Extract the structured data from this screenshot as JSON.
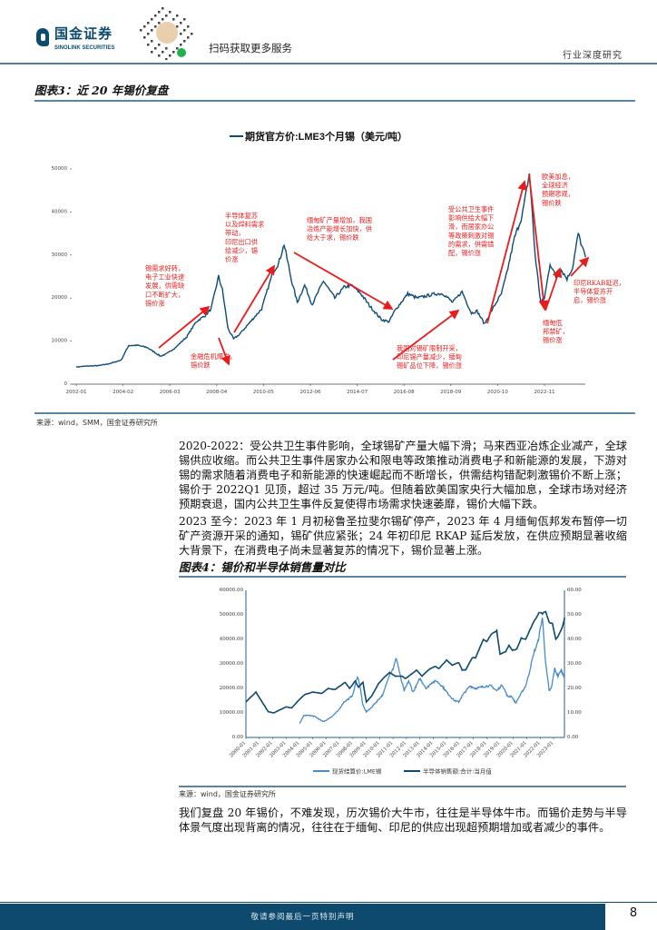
{
  "header": {
    "logo_cn": "国金证券",
    "logo_en": "SINOLINK SECURITIES",
    "qr_caption": "扫码获取更多服务",
    "doc_type": "行业深度研究",
    "brand_color": "#0c4a6e"
  },
  "figure3": {
    "title": "图表3：近 20 年锡价复盘",
    "source": "来源：wind，SMM，国金证券研究所"
  },
  "figure4": {
    "title": "图表4：锡价和半导体销售量对比",
    "source": "来源：wind，国金证券研究所"
  },
  "body": {
    "p1": "2020-2022：受公共卫生事件影响，全球锡矿产量大幅下滑；马来西亚冶炼企业减产，全球锡供应收缩。而公共卫生事件居家办公和限电等政策推动消费电子和新能源的发展，下游对锡的需求随着消费电子和新能源的快速崛起而不断增长，供需结构错配刺激锡价不断上涨；锡价于 2022Q1 见顶，超过 35 万元/吨。但随着欧美国家央行大幅加息，全球市场对经济预期衰退，国内公共卫生事件反复使得市场需求快速萎靡，锡价大幅下跌。",
    "p2": "2023 至今：2023 年 1 月初秘鲁圣拉斐尔锡矿停产，2023 年 4 月缅甸佤邦发布暂停一切矿产资源开采的通知，锡矿供应紧张；24 年初印尼 RKAP 延后发放，在供应预期显著收缩大背景下，在消费电子尚未显著复苏的情况下，锡价显著上涨。",
    "p3": "我们复盘 20 年锡价，不难发现，历次锡价大牛市，往往是半导体牛市。而锡价走势与半导体景气度出现背离的情况，往往在于缅甸、印尼的供应出现超预期增加或者减少的事件。"
  },
  "footer": {
    "disclaimer": "敬请参阅最后一页特别声明",
    "page_number": "8"
  },
  "chart_data": [
    {
      "type": "line",
      "title": "",
      "legend": [
        "期货官方价:LME3个月锡（美元/吨）"
      ],
      "legend_placement": "top",
      "x_ticks": [
        "2002-01",
        "2004-02",
        "2006-03",
        "2008-04",
        "2010-05",
        "2012-06",
        "2014-07",
        "2016-08",
        "2018-09",
        "2020-10",
        "2022-11"
      ],
      "y_ticks": [
        "0",
        "10000",
        "20000",
        "30000",
        "40000",
        "50000"
      ],
      "ylim": [
        0,
        50000
      ],
      "grid": false,
      "line_color": "#0f4c75",
      "annotation_color": "#e81c1c",
      "series": [
        {
          "name": "期货官方价:LME3个月锡（美元/吨）",
          "points": [
            [
              "2002-01",
              4000
            ],
            [
              "2002-07",
              4200
            ],
            [
              "2003-01",
              4300
            ],
            [
              "2003-07",
              4800
            ],
            [
              "2004-01",
              5600
            ],
            [
              "2004-05",
              9000
            ],
            [
              "2004-10",
              9000
            ],
            [
              "2005-03",
              8500
            ],
            [
              "2005-10",
              6500
            ],
            [
              "2006-01",
              7000
            ],
            [
              "2006-06",
              8500
            ],
            [
              "2006-12",
              11000
            ],
            [
              "2007-05",
              14500
            ],
            [
              "2007-10",
              16000
            ],
            [
              "2008-01",
              17500
            ],
            [
              "2008-05",
              25000
            ],
            [
              "2008-07",
              22000
            ],
            [
              "2008-10",
              13000
            ],
            [
              "2009-01",
              10500
            ],
            [
              "2009-04",
              11500
            ],
            [
              "2009-10",
              14500
            ],
            [
              "2010-04",
              17500
            ],
            [
              "2010-10",
              26000
            ],
            [
              "2011-01",
              28000
            ],
            [
              "2011-04",
              32500
            ],
            [
              "2011-08",
              24000
            ],
            [
              "2011-11",
              19000
            ],
            [
              "2012-03",
              23000
            ],
            [
              "2012-07",
              18500
            ],
            [
              "2013-01",
              24000
            ],
            [
              "2013-07",
              20000
            ],
            [
              "2013-12",
              22500
            ],
            [
              "2014-04",
              23000
            ],
            [
              "2014-09",
              21000
            ],
            [
              "2015-02",
              18000
            ],
            [
              "2015-08",
              15000
            ],
            [
              "2015-12",
              14500
            ],
            [
              "2016-03",
              17000
            ],
            [
              "2016-10",
              21000
            ],
            [
              "2017-03",
              20000
            ],
            [
              "2017-08",
              20500
            ],
            [
              "2018-01",
              21000
            ],
            [
              "2018-05",
              21000
            ],
            [
              "2018-10",
              19000
            ],
            [
              "2019-03",
              21500
            ],
            [
              "2019-08",
              16500
            ],
            [
              "2019-11",
              17000
            ],
            [
              "2020-03",
              14000
            ],
            [
              "2020-08",
              18000
            ],
            [
              "2020-12",
              21000
            ],
            [
              "2021-03",
              26000
            ],
            [
              "2021-07",
              34000
            ],
            [
              "2021-11",
              39000
            ],
            [
              "2022-03",
              49000
            ],
            [
              "2022-06",
              30000
            ],
            [
              "2022-09",
              19000
            ],
            [
              "2022-11",
              20000
            ],
            [
              "2023-02",
              28000
            ],
            [
              "2023-05",
              25000
            ],
            [
              "2023-08",
              26500
            ],
            [
              "2023-11",
              24500
            ],
            [
              "2024-02",
              27000
            ],
            [
              "2024-05",
              35000
            ],
            [
              "2024-07",
              32000
            ],
            [
              "2024-09",
              29500
            ]
          ]
        }
      ],
      "annotations": [
        {
          "text": [
            "锡需求好转，",
            "电子工业快速",
            "发展，供需缺",
            "口不断扩大，",
            "锡价涨"
          ],
          "trend": "up"
        },
        {
          "text": [
            "金融危机爆发，",
            "锡价跌"
          ],
          "trend": "down"
        },
        {
          "text": [
            "半导体复苏",
            "以及焊料需求",
            "带动，",
            "印尼出口供",
            "给减少，锡",
            "价涨"
          ],
          "trend": "up"
        },
        {
          "text": [
            "缅甸矿产量增加，我国",
            "冶炼产能增长加快，供",
            "给大于求，锡价跌"
          ],
          "trend": "down"
        },
        {
          "text": [
            "我国对锡矿限制开采，",
            "印尼锡产量减少，缅甸",
            "锡矿品位下降，锡价涨"
          ],
          "trend": "up"
        },
        {
          "text": [
            "受公共卫生事件",
            "影响供给大幅下",
            "滑，而居家办公",
            "等政策刺激对锡",
            "的需求，供需错",
            "配，锡价涨"
          ],
          "trend": "up"
        },
        {
          "text": [
            "欧美加息，",
            "全球经济",
            "预期悲观，",
            "锡价跌"
          ],
          "trend": "down"
        },
        {
          "text": [
            "缅甸佤",
            "邦禁矿，",
            "锡价涨"
          ],
          "trend": "up"
        },
        {
          "text": [
            "印尼RKAB延迟，",
            "半导体复苏开",
            "启，锡价涨"
          ],
          "trend": "up"
        }
      ]
    },
    {
      "type": "line",
      "title": "",
      "legend_placement": "bottom",
      "x_ticks": [
        "2000-01",
        "2001-01",
        "2002-01",
        "2003-01",
        "2004-01",
        "2005-01",
        "2006-01",
        "2007-01",
        "2008-01",
        "2009-01",
        "2010-01",
        "2011-01",
        "2012-01",
        "2013-01",
        "2014-01",
        "2015-01",
        "2016-01",
        "2017-01",
        "2018-01",
        "2019-01",
        "2020-01",
        "2021-01",
        "2022-01",
        "2023-01"
      ],
      "y_left_ticks": [
        "0.00",
        "10000.00",
        "20000.00",
        "30000.00",
        "40000.00",
        "50000.00",
        "60000.00"
      ],
      "y_right_ticks": [
        "0.00",
        "10.00",
        "20.00",
        "30.00",
        "40.00",
        "50.00",
        "60.00"
      ],
      "ylim_left": [
        0,
        60000
      ],
      "ylim_right": [
        0,
        60
      ],
      "grid": false,
      "series": [
        {
          "name": "现货结算价:LME锡",
          "axis": "left",
          "color": "#4a8ac9",
          "points": [
            [
              "2004-01",
              5600
            ],
            [
              "2004-05",
              9000
            ],
            [
              "2004-10",
              9000
            ],
            [
              "2005-03",
              8500
            ],
            [
              "2005-10",
              6500
            ],
            [
              "2006-01",
              7000
            ],
            [
              "2006-06",
              8500
            ],
            [
              "2006-12",
              11000
            ],
            [
              "2007-05",
              14500
            ],
            [
              "2007-10",
              16000
            ],
            [
              "2008-01",
              17500
            ],
            [
              "2008-05",
              25000
            ],
            [
              "2008-07",
              22000
            ],
            [
              "2008-10",
              13000
            ],
            [
              "2009-01",
              10500
            ],
            [
              "2009-04",
              11500
            ],
            [
              "2009-10",
              14500
            ],
            [
              "2010-04",
              17500
            ],
            [
              "2010-10",
              26000
            ],
            [
              "2011-01",
              28000
            ],
            [
              "2011-04",
              32500
            ],
            [
              "2011-08",
              24000
            ],
            [
              "2011-11",
              19000
            ],
            [
              "2012-03",
              23000
            ],
            [
              "2012-07",
              18500
            ],
            [
              "2013-01",
              24000
            ],
            [
              "2013-07",
              20000
            ],
            [
              "2013-12",
              22500
            ],
            [
              "2014-04",
              23000
            ],
            [
              "2014-09",
              21000
            ],
            [
              "2015-02",
              18000
            ],
            [
              "2015-08",
              15000
            ],
            [
              "2015-12",
              14500
            ],
            [
              "2016-03",
              17000
            ],
            [
              "2016-10",
              21000
            ],
            [
              "2017-03",
              20000
            ],
            [
              "2017-08",
              20500
            ],
            [
              "2018-01",
              21000
            ],
            [
              "2018-05",
              21000
            ],
            [
              "2018-10",
              19000
            ],
            [
              "2019-03",
              21500
            ],
            [
              "2019-08",
              16500
            ],
            [
              "2019-11",
              17000
            ],
            [
              "2020-03",
              14000
            ],
            [
              "2020-08",
              18000
            ],
            [
              "2020-12",
              21000
            ],
            [
              "2021-03",
              26000
            ],
            [
              "2021-07",
              34000
            ],
            [
              "2021-11",
              39000
            ],
            [
              "2022-03",
              49000
            ],
            [
              "2022-06",
              30000
            ],
            [
              "2022-09",
              19000
            ],
            [
              "2022-11",
              20000
            ],
            [
              "2023-02",
              28000
            ],
            [
              "2023-05",
              25000
            ],
            [
              "2023-08",
              27500
            ],
            [
              "2023-11",
              24000
            ]
          ]
        },
        {
          "name": "半导体销售额:合计:当月值",
          "axis": "right",
          "color": "#0d4a6e",
          "points": [
            [
              "2000-01",
              14.5
            ],
            [
              "2000-10",
              18.5
            ],
            [
              "2001-09",
              10.5
            ],
            [
              "2002-02",
              10
            ],
            [
              "2003-01",
              12.5
            ],
            [
              "2003-06",
              12
            ],
            [
              "2004-01",
              15.5
            ],
            [
              "2004-06",
              17.5
            ],
            [
              "2005-01",
              18.5
            ],
            [
              "2005-09",
              18
            ],
            [
              "2006-03",
              20
            ],
            [
              "2006-09",
              19.5
            ],
            [
              "2007-06",
              22.5
            ],
            [
              "2007-10",
              20
            ],
            [
              "2008-03",
              23
            ],
            [
              "2008-06",
              20.5
            ],
            [
              "2008-10",
              22.5
            ],
            [
              "2009-01",
              14.5
            ],
            [
              "2009-06",
              17
            ],
            [
              "2009-12",
              22
            ],
            [
              "2010-06",
              25
            ],
            [
              "2010-10",
              26.5
            ],
            [
              "2011-03",
              25
            ],
            [
              "2011-09",
              25
            ],
            [
              "2011-12",
              24
            ],
            [
              "2012-06",
              26
            ],
            [
              "2012-10",
              27.5
            ],
            [
              "2013-03",
              25
            ],
            [
              "2013-10",
              28
            ],
            [
              "2014-03",
              29
            ],
            [
              "2014-06",
              28
            ],
            [
              "2015-01",
              31.5
            ],
            [
              "2015-06",
              29.5
            ],
            [
              "2015-12",
              30.5
            ],
            [
              "2016-03",
              27.5
            ],
            [
              "2016-06",
              27.5
            ],
            [
              "2016-12",
              32.5
            ],
            [
              "2017-03",
              32.5
            ],
            [
              "2017-10",
              40
            ],
            [
              "2018-01",
              39
            ],
            [
              "2018-05",
              42
            ],
            [
              "2018-10",
              43.5
            ],
            [
              "2019-01",
              34
            ],
            [
              "2019-06",
              35
            ],
            [
              "2019-09",
              37.5
            ],
            [
              "2019-12",
              35.5
            ],
            [
              "2020-04",
              36
            ],
            [
              "2020-08",
              40.5
            ],
            [
              "2020-12",
              40
            ],
            [
              "2021-06",
              46
            ],
            [
              "2021-12",
              51
            ],
            [
              "2022-03",
              50.5
            ],
            [
              "2022-06",
              51.5
            ],
            [
              "2022-09",
              47
            ],
            [
              "2022-12",
              46.5
            ],
            [
              "2023-03",
              40
            ],
            [
              "2023-06",
              42
            ],
            [
              "2023-09",
              45
            ],
            [
              "2023-11",
              49
            ]
          ]
        }
      ]
    }
  ]
}
